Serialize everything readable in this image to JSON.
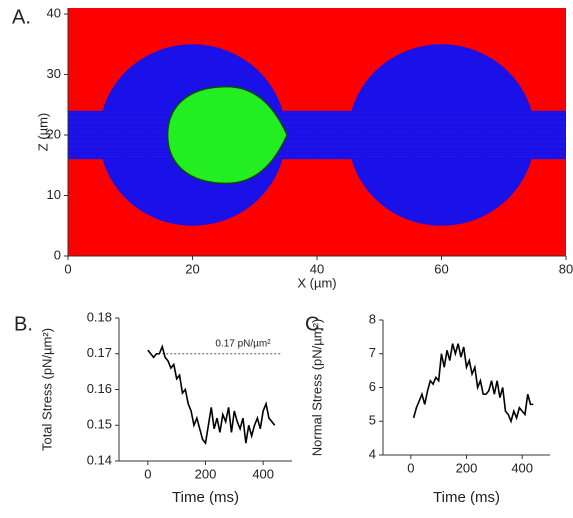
{
  "chart_data": [
    {
      "type": "field",
      "label": "A.",
      "xlabel": "X (µm)",
      "ylabel": "Z (µm)",
      "xlim": [
        0,
        80
      ],
      "ylim": [
        0,
        41
      ],
      "xticks": [
        0,
        20,
        40,
        60,
        80
      ],
      "yticks": [
        0,
        10,
        20,
        30,
        40
      ]
    },
    {
      "type": "line",
      "label": "B.",
      "xlabel": "Time (ms)",
      "ylabel": "Total Stress (pN/µm²)",
      "annotation": "0.17 pN/µm²",
      "ref_line": 0.17,
      "xlim": [
        -100,
        500
      ],
      "ylim": [
        0.14,
        0.18
      ],
      "xticks": [
        0,
        200,
        400
      ],
      "yticks": [
        0.14,
        0.15,
        0.16,
        0.17,
        0.18
      ],
      "x": [
        0,
        10,
        20,
        30,
        40,
        50,
        60,
        70,
        80,
        90,
        100,
        110,
        120,
        130,
        140,
        150,
        160,
        170,
        180,
        190,
        200,
        210,
        220,
        230,
        240,
        250,
        260,
        270,
        280,
        290,
        300,
        310,
        320,
        330,
        340,
        350,
        360,
        370,
        380,
        390,
        400,
        410,
        420,
        430,
        440
      ],
      "series": [
        {
          "color": "#000000",
          "values": [
            0.171,
            0.17,
            0.169,
            0.17,
            0.17,
            0.172,
            0.169,
            0.168,
            0.166,
            0.167,
            0.163,
            0.164,
            0.159,
            0.16,
            0.156,
            0.154,
            0.15,
            0.152,
            0.149,
            0.146,
            0.145,
            0.15,
            0.155,
            0.149,
            0.152,
            0.148,
            0.153,
            0.151,
            0.155,
            0.148,
            0.154,
            0.151,
            0.149,
            0.152,
            0.145,
            0.15,
            0.147,
            0.15,
            0.152,
            0.149,
            0.154,
            0.156,
            0.152,
            0.151,
            0.15
          ]
        }
      ]
    },
    {
      "type": "line",
      "label": "C.",
      "xlabel": "Time (ms)",
      "ylabel": "Normal Stress (pN/µm²)",
      "xlim": [
        -100,
        500
      ],
      "ylim": [
        4,
        8
      ],
      "xticks": [
        0,
        200,
        400
      ],
      "yticks": [
        4,
        5,
        6,
        7,
        8
      ],
      "x": [
        10,
        20,
        30,
        40,
        50,
        60,
        70,
        80,
        90,
        100,
        110,
        120,
        130,
        140,
        150,
        160,
        170,
        180,
        190,
        200,
        210,
        220,
        230,
        240,
        250,
        260,
        270,
        280,
        290,
        300,
        310,
        320,
        330,
        340,
        350,
        360,
        370,
        380,
        390,
        400,
        410,
        420,
        430,
        440
      ],
      "series": [
        {
          "color": "#000000",
          "values": [
            5.1,
            5.4,
            5.6,
            5.8,
            5.5,
            5.9,
            6.2,
            6.1,
            6.3,
            6.2,
            7.0,
            6.6,
            7.1,
            6.8,
            7.3,
            7.0,
            7.3,
            6.9,
            7.2,
            6.6,
            6.8,
            6.4,
            6.6,
            6.0,
            6.2,
            5.8,
            5.8,
            5.9,
            6.2,
            5.8,
            6.2,
            5.7,
            6.0,
            5.3,
            5.2,
            5.0,
            5.3,
            5.1,
            5.4,
            5.3,
            5.2,
            5.8,
            5.5,
            5.5
          ]
        }
      ]
    }
  ]
}
